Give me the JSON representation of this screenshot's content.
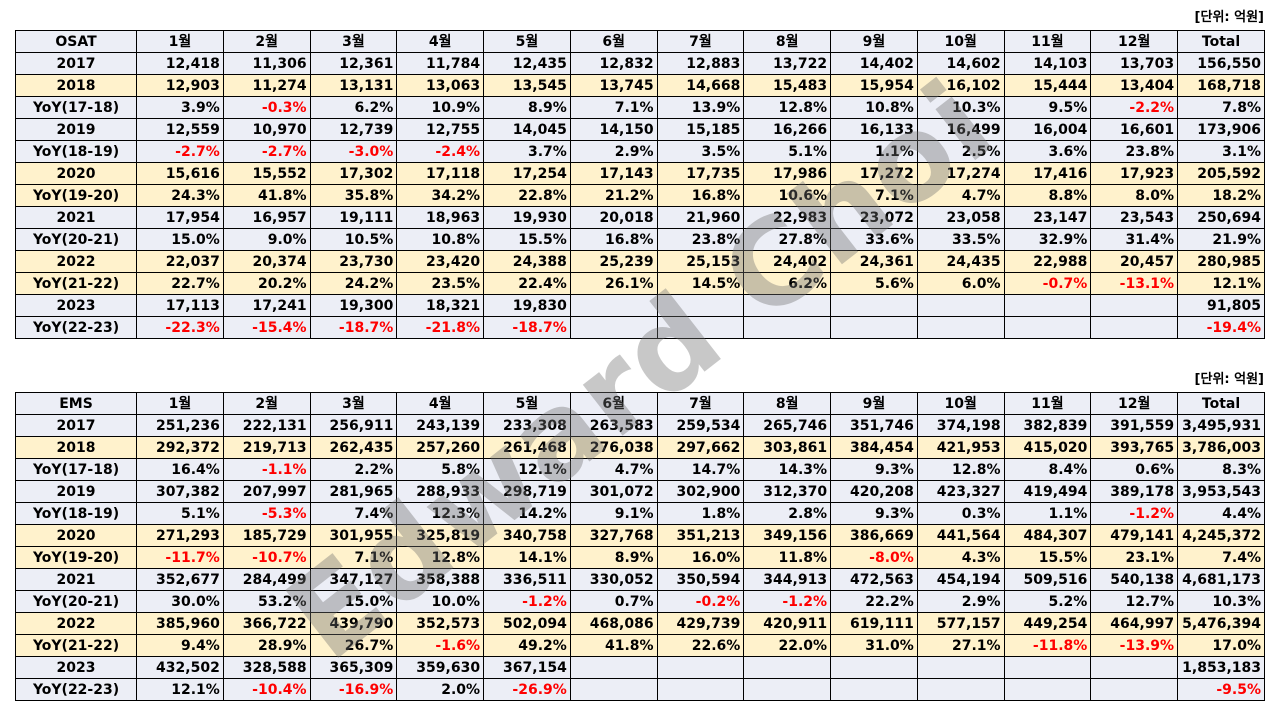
{
  "watermark": "Edward Choi",
  "tables": [
    {
      "unit": "[단위: 억원]",
      "header": [
        "OSAT",
        "1월",
        "2월",
        "3월",
        "4월",
        "5월",
        "6월",
        "7월",
        "8월",
        "9월",
        "10월",
        "11월",
        "12월",
        "Total"
      ],
      "rows": [
        {
          "hl": false,
          "cells": [
            "2017",
            "12,418",
            "11,306",
            "12,361",
            "11,784",
            "12,435",
            "12,832",
            "12,883",
            "13,722",
            "14,402",
            "14,602",
            "14,103",
            "13,703",
            "156,550"
          ]
        },
        {
          "hl": true,
          "cells": [
            "2018",
            "12,903",
            "11,274",
            "13,131",
            "13,063",
            "13,545",
            "13,745",
            "14,668",
            "15,483",
            "15,954",
            "16,102",
            "15,444",
            "13,404",
            "168,718"
          ]
        },
        {
          "hl": false,
          "cells": [
            "YoY(17-18)",
            "3.9%",
            "-0.3%",
            "6.2%",
            "10.9%",
            "8.9%",
            "7.1%",
            "13.9%",
            "12.8%",
            "10.8%",
            "10.3%",
            "9.5%",
            "-2.2%",
            "7.8%"
          ]
        },
        {
          "hl": false,
          "cells": [
            "2019",
            "12,559",
            "10,970",
            "12,739",
            "12,755",
            "14,045",
            "14,150",
            "15,185",
            "16,266",
            "16,133",
            "16,499",
            "16,004",
            "16,601",
            "173,906"
          ]
        },
        {
          "hl": false,
          "cells": [
            "YoY(18-19)",
            "-2.7%",
            "-2.7%",
            "-3.0%",
            "-2.4%",
            "3.7%",
            "2.9%",
            "3.5%",
            "5.1%",
            "1.1%",
            "2.5%",
            "3.6%",
            "23.8%",
            "3.1%"
          ]
        },
        {
          "hl": true,
          "cells": [
            "2020",
            "15,616",
            "15,552",
            "17,302",
            "17,118",
            "17,254",
            "17,143",
            "17,735",
            "17,986",
            "17,272",
            "17,274",
            "17,416",
            "17,923",
            "205,592"
          ]
        },
        {
          "hl": true,
          "cells": [
            "YoY(19-20)",
            "24.3%",
            "41.8%",
            "35.8%",
            "34.2%",
            "22.8%",
            "21.2%",
            "16.8%",
            "10.6%",
            "7.1%",
            "4.7%",
            "8.8%",
            "8.0%",
            "18.2%"
          ]
        },
        {
          "hl": false,
          "cells": [
            "2021",
            "17,954",
            "16,957",
            "19,111",
            "18,963",
            "19,930",
            "20,018",
            "21,960",
            "22,983",
            "23,072",
            "23,058",
            "23,147",
            "23,543",
            "250,694"
          ]
        },
        {
          "hl": false,
          "cells": [
            "YoY(20-21)",
            "15.0%",
            "9.0%",
            "10.5%",
            "10.8%",
            "15.5%",
            "16.8%",
            "23.8%",
            "27.8%",
            "33.6%",
            "33.5%",
            "32.9%",
            "31.4%",
            "21.9%"
          ]
        },
        {
          "hl": true,
          "cells": [
            "2022",
            "22,037",
            "20,374",
            "23,730",
            "23,420",
            "24,388",
            "25,239",
            "25,153",
            "24,402",
            "24,361",
            "24,435",
            "22,988",
            "20,457",
            "280,985"
          ]
        },
        {
          "hl": true,
          "cells": [
            "YoY(21-22)",
            "22.7%",
            "20.2%",
            "24.2%",
            "23.5%",
            "22.4%",
            "26.1%",
            "14.5%",
            "6.2%",
            "5.6%",
            "6.0%",
            "-0.7%",
            "-13.1%",
            "12.1%"
          ]
        },
        {
          "hl": false,
          "cells": [
            "2023",
            "17,113",
            "17,241",
            "19,300",
            "18,321",
            "19,830",
            "",
            "",
            "",
            "",
            "",
            "",
            "",
            "91,805"
          ]
        },
        {
          "hl": false,
          "cells": [
            "YoY(22-23)",
            "-22.3%",
            "-15.4%",
            "-18.7%",
            "-21.8%",
            "-18.7%",
            "",
            "",
            "",
            "",
            "",
            "",
            "",
            "-19.4%"
          ]
        }
      ]
    },
    {
      "unit": "[단위: 억원]",
      "header": [
        "EMS",
        "1월",
        "2월",
        "3월",
        "4월",
        "5월",
        "6월",
        "7월",
        "8월",
        "9월",
        "10월",
        "11월",
        "12월",
        "Total"
      ],
      "rows": [
        {
          "hl": false,
          "cells": [
            "2017",
            "251,236",
            "222,131",
            "256,911",
            "243,139",
            "233,308",
            "263,583",
            "259,534",
            "265,746",
            "351,746",
            "374,198",
            "382,839",
            "391,559",
            "3,495,931"
          ]
        },
        {
          "hl": true,
          "cells": [
            "2018",
            "292,372",
            "219,713",
            "262,435",
            "257,260",
            "261,468",
            "276,038",
            "297,662",
            "303,861",
            "384,454",
            "421,953",
            "415,020",
            "393,765",
            "3,786,003"
          ]
        },
        {
          "hl": false,
          "cells": [
            "YoY(17-18)",
            "16.4%",
            "-1.1%",
            "2.2%",
            "5.8%",
            "12.1%",
            "4.7%",
            "14.7%",
            "14.3%",
            "9.3%",
            "12.8%",
            "8.4%",
            "0.6%",
            "8.3%"
          ]
        },
        {
          "hl": false,
          "cells": [
            "2019",
            "307,382",
            "207,997",
            "281,965",
            "288,933",
            "298,719",
            "301,072",
            "302,900",
            "312,370",
            "420,208",
            "423,327",
            "419,494",
            "389,178",
            "3,953,543"
          ]
        },
        {
          "hl": false,
          "cells": [
            "YoY(18-19)",
            "5.1%",
            "-5.3%",
            "7.4%",
            "12.3%",
            "14.2%",
            "9.1%",
            "1.8%",
            "2.8%",
            "9.3%",
            "0.3%",
            "1.1%",
            "-1.2%",
            "4.4%"
          ]
        },
        {
          "hl": true,
          "cells": [
            "2020",
            "271,293",
            "185,729",
            "301,955",
            "325,819",
            "340,758",
            "327,768",
            "351,213",
            "349,156",
            "386,669",
            "441,564",
            "484,307",
            "479,141",
            "4,245,372"
          ]
        },
        {
          "hl": true,
          "cells": [
            "YoY(19-20)",
            "-11.7%",
            "-10.7%",
            "7.1%",
            "12.8%",
            "14.1%",
            "8.9%",
            "16.0%",
            "11.8%",
            "-8.0%",
            "4.3%",
            "15.5%",
            "23.1%",
            "7.4%"
          ]
        },
        {
          "hl": false,
          "cells": [
            "2021",
            "352,677",
            "284,499",
            "347,127",
            "358,388",
            "336,511",
            "330,052",
            "350,594",
            "344,913",
            "472,563",
            "454,194",
            "509,516",
            "540,138",
            "4,681,173"
          ]
        },
        {
          "hl": false,
          "cells": [
            "YoY(20-21)",
            "30.0%",
            "53.2%",
            "15.0%",
            "10.0%",
            "-1.2%",
            "0.7%",
            "-0.2%",
            "-1.2%",
            "22.2%",
            "2.9%",
            "5.2%",
            "12.7%",
            "10.3%"
          ]
        },
        {
          "hl": true,
          "cells": [
            "2022",
            "385,960",
            "366,722",
            "439,790",
            "352,573",
            "502,094",
            "468,086",
            "429,739",
            "420,911",
            "619,111",
            "577,157",
            "449,254",
            "464,997",
            "5,476,394"
          ]
        },
        {
          "hl": true,
          "cells": [
            "YoY(21-22)",
            "9.4%",
            "28.9%",
            "26.7%",
            "-1.6%",
            "49.2%",
            "41.8%",
            "22.6%",
            "22.0%",
            "31.0%",
            "27.1%",
            "-11.8%",
            "-13.9%",
            "17.0%"
          ]
        },
        {
          "hl": false,
          "cells": [
            "2023",
            "432,502",
            "328,588",
            "365,309",
            "359,630",
            "367,154",
            "",
            "",
            "",
            "",
            "",
            "",
            "",
            "1,853,183"
          ]
        },
        {
          "hl": false,
          "cells": [
            "YoY(22-23)",
            "12.1%",
            "-10.4%",
            "-16.9%",
            "2.0%",
            "-26.9%",
            "",
            "",
            "",
            "",
            "",
            "",
            "",
            "-9.5%"
          ]
        }
      ]
    }
  ]
}
